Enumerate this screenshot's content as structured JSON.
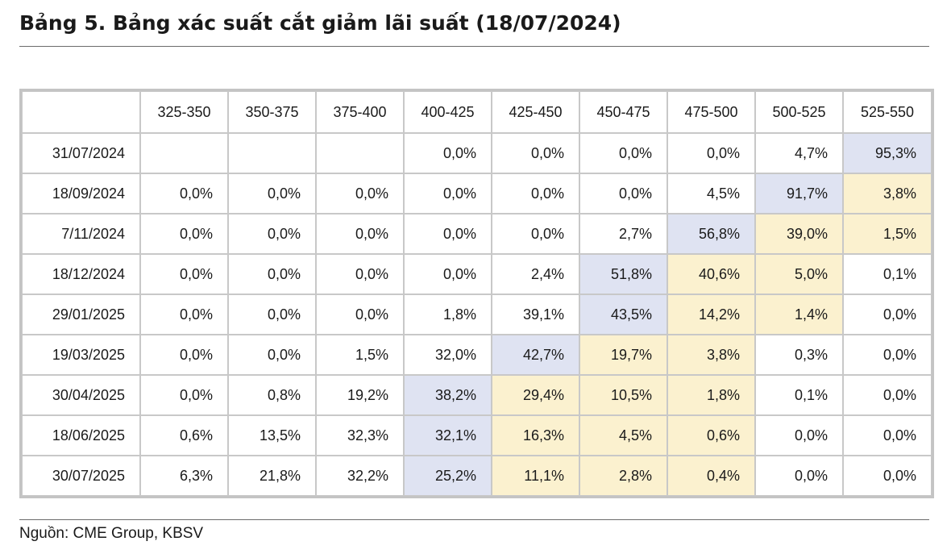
{
  "title": "Bảng 5. Bảng xác suất cắt giảm lãi suất (18/07/2024)",
  "columns": [
    "",
    "325-350",
    "350-375",
    "375-400",
    "400-425",
    "425-450",
    "450-475",
    "475-500",
    "500-525",
    "525-550"
  ],
  "rows": [
    {
      "label": "31/07/2024",
      "cells": [
        "",
        "",
        "",
        "0,0%",
        "0,0%",
        "0,0%",
        "0,0%",
        "4,7%",
        "95,3%"
      ]
    },
    {
      "label": "18/09/2024",
      "cells": [
        "0,0%",
        "0,0%",
        "0,0%",
        "0,0%",
        "0,0%",
        "0,0%",
        "4,5%",
        "91,7%",
        "3,8%"
      ]
    },
    {
      "label": "7/11/2024",
      "cells": [
        "0,0%",
        "0,0%",
        "0,0%",
        "0,0%",
        "0,0%",
        "2,7%",
        "56,8%",
        "39,0%",
        "1,5%"
      ]
    },
    {
      "label": "18/12/2024",
      "cells": [
        "0,0%",
        "0,0%",
        "0,0%",
        "0,0%",
        "2,4%",
        "51,8%",
        "40,6%",
        "5,0%",
        "0,1%"
      ]
    },
    {
      "label": "29/01/2025",
      "cells": [
        "0,0%",
        "0,0%",
        "0,0%",
        "1,8%",
        "39,1%",
        "43,5%",
        "14,2%",
        "1,4%",
        "0,0%"
      ]
    },
    {
      "label": "19/03/2025",
      "cells": [
        "0,0%",
        "0,0%",
        "1,5%",
        "32,0%",
        "42,7%",
        "19,7%",
        "3,8%",
        "0,3%",
        "0,0%"
      ]
    },
    {
      "label": "30/04/2025",
      "cells": [
        "0,0%",
        "0,8%",
        "19,2%",
        "38,2%",
        "29,4%",
        "10,5%",
        "1,8%",
        "0,1%",
        "0,0%"
      ]
    },
    {
      "label": "18/06/2025",
      "cells": [
        "0,6%",
        "13,5%",
        "32,3%",
        "32,1%",
        "16,3%",
        "4,5%",
        "0,6%",
        "0,0%",
        "0,0%"
      ]
    },
    {
      "label": "30/07/2025",
      "cells": [
        "6,3%",
        "21,8%",
        "32,2%",
        "25,2%",
        "11,1%",
        "2,8%",
        "0,4%",
        "0,0%",
        "0,0%"
      ]
    }
  ],
  "highlight_colors": {
    "blue": "#dfe3f2",
    "yellow": "#fbf1cf"
  },
  "source": "Nguồn: CME Group, KBSV"
}
